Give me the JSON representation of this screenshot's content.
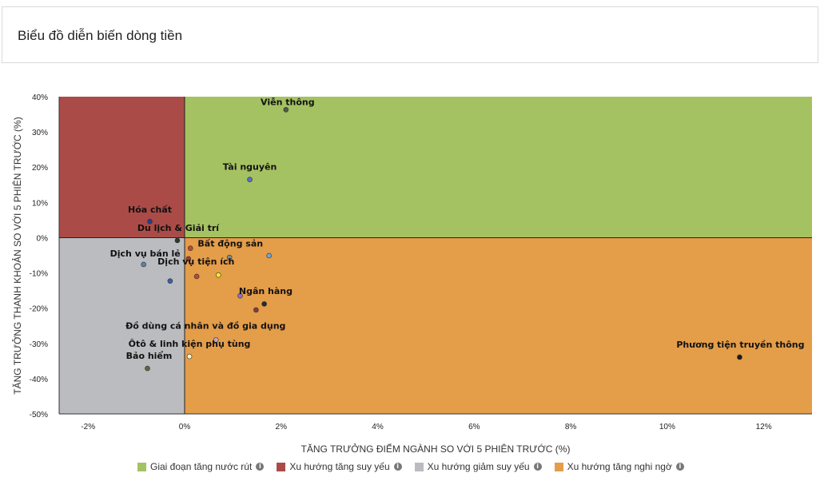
{
  "header": {
    "title": "Biểu đồ diễn biến dòng tiền"
  },
  "colors": {
    "q1": "#a5c262",
    "q2": "#ab4b47",
    "q3": "#babcbf",
    "q4": "#e49d49"
  },
  "legend": [
    {
      "label": "Giai đoạn tăng nước rút",
      "color": "#a5c262",
      "icon": "info-icon"
    },
    {
      "label": "Xu hướng tăng suy yếu",
      "color": "#ab4b47",
      "icon": "info-icon"
    },
    {
      "label": "Xu hướng giảm suy yếu",
      "color": "#babcbf",
      "icon": "info-icon"
    },
    {
      "label": "Xu hướng tăng nghi ngờ",
      "color": "#e49d49",
      "icon": "info-icon"
    }
  ],
  "chart_data": {
    "type": "scatter",
    "xlabel": "TĂNG TRƯỞNG ĐIỂM NGÀNH SO VỚI 5 PHIÊN TRƯỚC (%)",
    "ylabel": "TĂNG TRƯỞNG THANH KHOẢN SO VỚI 5 PHIÊN TRƯỚC (%)",
    "xlim": [
      -2.6,
      13.0
    ],
    "ylim": [
      -50,
      40
    ],
    "xticks": [
      -2,
      0,
      2,
      4,
      6,
      8,
      10,
      12
    ],
    "yticks": [
      40,
      30,
      20,
      10,
      0,
      -10,
      -20,
      -30,
      -40,
      -50
    ],
    "xtick_labels": [
      "-2%",
      "0%",
      "2%",
      "4%",
      "6%",
      "8%",
      "10%",
      "12%"
    ],
    "ytick_labels": [
      "40%",
      "30%",
      "20%",
      "10%",
      "0%",
      "-10%",
      "-20%",
      "-30%",
      "-40%",
      "-50%"
    ],
    "points": [
      {
        "label": "Viễn thông",
        "x": 2.1,
        "y": 36.3,
        "color": "#4d5b4b"
      },
      {
        "label": "Tài nguyên",
        "x": 1.35,
        "y": 16.5,
        "color": "#5a6fc9"
      },
      {
        "label": "Hóa chất",
        "x": -0.72,
        "y": 4.6,
        "color": "#2a3c8f"
      },
      {
        "label": "Du lịch & Giải trí",
        "x": -0.15,
        "y": -0.8,
        "color": "#2b3a2a"
      },
      {
        "label": "Bất động sản",
        "x": 0.12,
        "y": -3.0,
        "color": "#c2443c"
      },
      {
        "label": "",
        "x": 0.08,
        "y": -6.0,
        "color": "#a43a35"
      },
      {
        "label": "",
        "x": 0.93,
        "y": -5.6,
        "color": "#7c8c87"
      },
      {
        "label": "",
        "x": 1.75,
        "y": -5.1,
        "color": "#6ea6c8"
      },
      {
        "label": "Dịch vụ bán lẻ",
        "x": -0.85,
        "y": -7.6,
        "color": "#5b84a1"
      },
      {
        "label": "Dịch vụ tiện ích",
        "x": 0.7,
        "y": -10.6,
        "color": "#f2ea2a"
      },
      {
        "label": "",
        "x": 0.25,
        "y": -11.0,
        "color": "#b84a3e"
      },
      {
        "label": "",
        "x": -0.3,
        "y": -12.3,
        "color": "#3d5fa8"
      },
      {
        "label": "Ngân hàng",
        "x": 1.15,
        "y": -16.5,
        "color": "#8e6fbf"
      },
      {
        "label": "",
        "x": 1.65,
        "y": -18.8,
        "color": "#2a2a2a"
      },
      {
        "label": "",
        "x": 1.48,
        "y": -20.5,
        "color": "#8a3a3a"
      },
      {
        "label": "Đồ dùng cá nhân và đồ gia dụng",
        "x": 0.65,
        "y": -29.0,
        "color": "#c7a4b8"
      },
      {
        "label": "Ôtô & linh kiện phụ tùng",
        "x": 0.1,
        "y": -33.7,
        "color": "#f7f3c8"
      },
      {
        "label": "Bảo hiểm",
        "x": -0.77,
        "y": -37.1,
        "color": "#5a6b3a"
      },
      {
        "label": "Phương tiện truyền thông",
        "x": 11.5,
        "y": -33.9,
        "color": "#1a1a1a"
      }
    ]
  }
}
